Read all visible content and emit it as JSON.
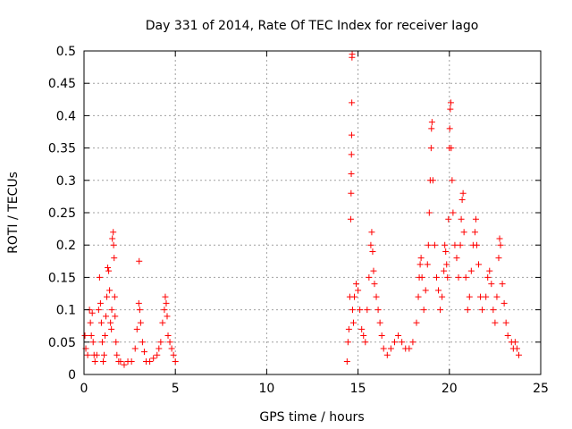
{
  "chart_data": {
    "type": "scatter",
    "title": "Day 331 of 2014, Rate Of TEC Index for receiver Iago",
    "xlabel": "GPS time / hours",
    "ylabel": "ROTI / TECUs",
    "xlim": [
      0,
      25
    ],
    "ylim": [
      0,
      0.5
    ],
    "x_ticks": [
      "0",
      "5",
      "10",
      "15",
      "20",
      "25"
    ],
    "y_ticks": [
      "0",
      "0.05",
      "0.1",
      "0.15",
      "0.2",
      "0.25",
      "0.3",
      "0.35",
      "0.4",
      "0.45",
      "0.5"
    ],
    "grid": true,
    "legend": "none",
    "marker": "plus",
    "color": "#ff0000",
    "series": [
      {
        "values": [
          [
            0.05,
            0.06
          ],
          [
            0.1,
            0.04
          ],
          [
            0.2,
            0.03
          ],
          [
            0.3,
            0.1
          ],
          [
            0.35,
            0.08
          ],
          [
            0.4,
            0.06
          ],
          [
            0.45,
            0.095
          ],
          [
            0.5,
            0.05
          ],
          [
            0.55,
            0.03
          ],
          [
            0.6,
            0.02
          ],
          [
            0.7,
            0.03
          ],
          [
            0.8,
            0.1
          ],
          [
            0.85,
            0.15
          ],
          [
            0.9,
            0.11
          ],
          [
            0.95,
            0.08
          ],
          [
            1.0,
            0.05
          ],
          [
            1.05,
            0.02
          ],
          [
            1.1,
            0.03
          ],
          [
            1.15,
            0.06
          ],
          [
            1.2,
            0.09
          ],
          [
            1.25,
            0.12
          ],
          [
            1.3,
            0.165
          ],
          [
            1.35,
            0.16
          ],
          [
            1.4,
            0.13
          ],
          [
            1.45,
            0.08
          ],
          [
            1.5,
            0.07
          ],
          [
            1.52,
            0.1
          ],
          [
            1.55,
            0.21
          ],
          [
            1.6,
            0.22
          ],
          [
            1.62,
            0.2
          ],
          [
            1.65,
            0.18
          ],
          [
            1.68,
            0.12
          ],
          [
            1.7,
            0.09
          ],
          [
            1.75,
            0.05
          ],
          [
            1.8,
            0.03
          ],
          [
            1.9,
            0.02
          ],
          [
            2.0,
            0.02
          ],
          [
            2.2,
            0.015
          ],
          [
            2.4,
            0.02
          ],
          [
            2.6,
            0.02
          ],
          [
            2.8,
            0.04
          ],
          [
            2.9,
            0.07
          ],
          [
            3.0,
            0.11
          ],
          [
            3.02,
            0.175
          ],
          [
            3.05,
            0.1
          ],
          [
            3.1,
            0.08
          ],
          [
            3.2,
            0.05
          ],
          [
            3.3,
            0.035
          ],
          [
            3.4,
            0.02
          ],
          [
            3.6,
            0.02
          ],
          [
            3.8,
            0.025
          ],
          [
            4.0,
            0.03
          ],
          [
            4.1,
            0.04
          ],
          [
            4.2,
            0.05
          ],
          [
            4.3,
            0.08
          ],
          [
            4.4,
            0.1
          ],
          [
            4.45,
            0.12
          ],
          [
            4.5,
            0.11
          ],
          [
            4.55,
            0.09
          ],
          [
            4.6,
            0.06
          ],
          [
            4.7,
            0.05
          ],
          [
            4.8,
            0.04
          ],
          [
            4.9,
            0.03
          ],
          [
            5.0,
            0.02
          ],
          [
            14.4,
            0.02
          ],
          [
            14.45,
            0.05
          ],
          [
            14.5,
            0.07
          ],
          [
            14.55,
            0.12
          ],
          [
            14.6,
            0.24
          ],
          [
            14.62,
            0.28
          ],
          [
            14.63,
            0.31
          ],
          [
            14.64,
            0.34
          ],
          [
            14.65,
            0.37
          ],
          [
            14.66,
            0.42
          ],
          [
            14.67,
            0.49
          ],
          [
            14.68,
            0.495
          ],
          [
            14.7,
            0.1
          ],
          [
            14.75,
            0.08
          ],
          [
            14.8,
            0.12
          ],
          [
            14.9,
            0.14
          ],
          [
            15.0,
            0.13
          ],
          [
            15.1,
            0.1
          ],
          [
            15.2,
            0.07
          ],
          [
            15.3,
            0.06
          ],
          [
            15.4,
            0.05
          ],
          [
            15.5,
            0.1
          ],
          [
            15.6,
            0.15
          ],
          [
            15.7,
            0.2
          ],
          [
            15.75,
            0.22
          ],
          [
            15.8,
            0.19
          ],
          [
            15.85,
            0.16
          ],
          [
            15.9,
            0.14
          ],
          [
            16.0,
            0.12
          ],
          [
            16.1,
            0.1
          ],
          [
            16.2,
            0.08
          ],
          [
            16.3,
            0.06
          ],
          [
            16.4,
            0.04
          ],
          [
            16.6,
            0.03
          ],
          [
            16.8,
            0.04
          ],
          [
            17.0,
            0.05
          ],
          [
            17.2,
            0.06
          ],
          [
            17.4,
            0.05
          ],
          [
            17.6,
            0.04
          ],
          [
            17.8,
            0.04
          ],
          [
            18.0,
            0.05
          ],
          [
            18.2,
            0.08
          ],
          [
            18.3,
            0.12
          ],
          [
            18.35,
            0.15
          ],
          [
            18.4,
            0.17
          ],
          [
            18.45,
            0.18
          ],
          [
            18.5,
            0.15
          ],
          [
            18.6,
            0.1
          ],
          [
            18.7,
            0.13
          ],
          [
            18.8,
            0.17
          ],
          [
            18.85,
            0.2
          ],
          [
            18.9,
            0.25
          ],
          [
            18.95,
            0.3
          ],
          [
            19.0,
            0.35
          ],
          [
            19.02,
            0.38
          ],
          [
            19.05,
            0.39
          ],
          [
            19.1,
            0.3
          ],
          [
            19.2,
            0.2
          ],
          [
            19.3,
            0.15
          ],
          [
            19.4,
            0.13
          ],
          [
            19.5,
            0.1
          ],
          [
            19.6,
            0.12
          ],
          [
            19.7,
            0.16
          ],
          [
            19.75,
            0.2
          ],
          [
            19.8,
            0.19
          ],
          [
            19.85,
            0.17
          ],
          [
            19.9,
            0.15
          ],
          [
            19.95,
            0.24
          ],
          [
            20.0,
            0.35
          ],
          [
            20.02,
            0.38
          ],
          [
            20.05,
            0.41
          ],
          [
            20.08,
            0.42
          ],
          [
            20.1,
            0.35
          ],
          [
            20.15,
            0.3
          ],
          [
            20.2,
            0.25
          ],
          [
            20.3,
            0.2
          ],
          [
            20.4,
            0.18
          ],
          [
            20.5,
            0.15
          ],
          [
            20.6,
            0.2
          ],
          [
            20.65,
            0.24
          ],
          [
            20.7,
            0.27
          ],
          [
            20.75,
            0.28
          ],
          [
            20.8,
            0.22
          ],
          [
            20.9,
            0.15
          ],
          [
            21.0,
            0.1
          ],
          [
            21.1,
            0.12
          ],
          [
            21.2,
            0.16
          ],
          [
            21.3,
            0.2
          ],
          [
            21.4,
            0.22
          ],
          [
            21.45,
            0.24
          ],
          [
            21.5,
            0.2
          ],
          [
            21.6,
            0.17
          ],
          [
            21.7,
            0.12
          ],
          [
            21.8,
            0.1
          ],
          [
            22.0,
            0.12
          ],
          [
            22.1,
            0.15
          ],
          [
            22.2,
            0.16
          ],
          [
            22.3,
            0.14
          ],
          [
            22.4,
            0.1
          ],
          [
            22.5,
            0.08
          ],
          [
            22.6,
            0.12
          ],
          [
            22.7,
            0.18
          ],
          [
            22.75,
            0.21
          ],
          [
            22.8,
            0.2
          ],
          [
            22.9,
            0.14
          ],
          [
            23.0,
            0.11
          ],
          [
            23.1,
            0.08
          ],
          [
            23.2,
            0.06
          ],
          [
            23.4,
            0.05
          ],
          [
            23.5,
            0.04
          ],
          [
            23.6,
            0.05
          ],
          [
            23.7,
            0.04
          ],
          [
            23.8,
            0.03
          ]
        ]
      }
    ]
  }
}
